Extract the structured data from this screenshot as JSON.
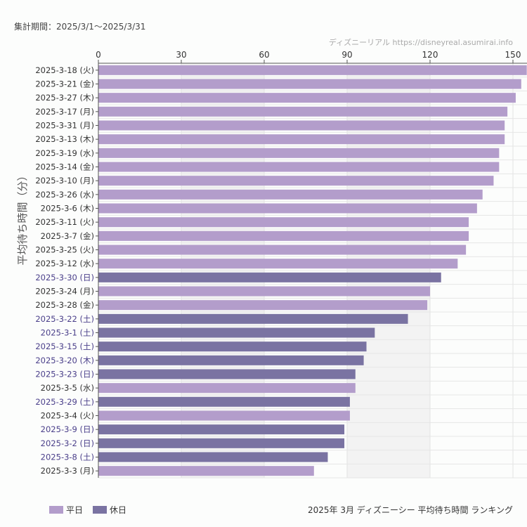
{
  "header": {
    "period": "集計期間：2025/3/1〜2025/3/31",
    "credit": "ディズニーリアル https://disneyreal.asumirai.info"
  },
  "footer": {
    "title": "2025年 3月 ディズニーシー 平均待ち時間 ランキング"
  },
  "chart_data": {
    "type": "bar",
    "orientation": "horizontal",
    "ylabel": "平均待ち時間（分）",
    "xlim": [
      0,
      155
    ],
    "xticks": [
      0,
      30,
      60,
      90,
      120,
      150
    ],
    "grid": true,
    "legend_position": "bottom-left",
    "colors": {
      "平日": "#b39dcb",
      "休日": "#7a73a2",
      "holiday_label": "#4a3f8a"
    },
    "legend": [
      "平日",
      "休日"
    ],
    "categories": [
      "2025-3-18 (火)",
      "2025-3-21 (金)",
      "2025-3-27 (木)",
      "2025-3-17 (月)",
      "2025-3-31 (月)",
      "2025-3-13 (木)",
      "2025-3-19 (水)",
      "2025-3-14 (金)",
      "2025-3-10 (月)",
      "2025-3-26 (水)",
      "2025-3-6 (木)",
      "2025-3-11 (火)",
      "2025-3-7 (金)",
      "2025-3-25 (火)",
      "2025-3-12 (水)",
      "2025-3-30 (日)",
      "2025-3-24 (月)",
      "2025-3-28 (金)",
      "2025-3-22 (土)",
      "2025-3-1 (土)",
      "2025-3-15 (土)",
      "2025-3-20 (木)",
      "2025-3-23 (日)",
      "2025-3-5 (水)",
      "2025-3-29 (土)",
      "2025-3-4 (火)",
      "2025-3-9 (日)",
      "2025-3-2 (日)",
      "2025-3-8 (土)",
      "2025-3-3 (月)"
    ],
    "values": [
      155,
      153,
      151,
      148,
      147,
      147,
      145,
      145,
      143,
      139,
      137,
      134,
      134,
      133,
      130,
      124,
      120,
      119,
      112,
      100,
      97,
      96,
      93,
      93,
      91,
      91,
      89,
      89,
      83,
      78
    ],
    "day_type": [
      "平日",
      "平日",
      "平日",
      "平日",
      "平日",
      "平日",
      "平日",
      "平日",
      "平日",
      "平日",
      "平日",
      "平日",
      "平日",
      "平日",
      "平日",
      "休日",
      "平日",
      "平日",
      "休日",
      "休日",
      "休日",
      "休日",
      "休日",
      "平日",
      "休日",
      "平日",
      "休日",
      "休日",
      "休日",
      "平日"
    ]
  }
}
